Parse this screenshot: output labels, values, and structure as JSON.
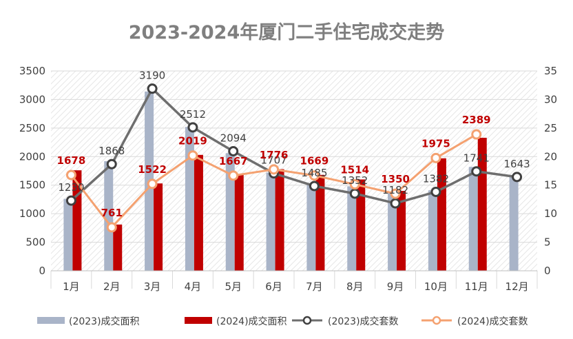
{
  "chart_data": {
    "type": "bar",
    "title": "2023-2024年厦门二手住宅成交走势",
    "categories": [
      "1月",
      "2月",
      "3月",
      "4月",
      "5月",
      "6月",
      "7月",
      "8月",
      "9月",
      "10月",
      "11月",
      "12月"
    ],
    "y_left": {
      "ylim": [
        0,
        3500
      ],
      "ticks": [
        "0",
        "500",
        "1000",
        "1500",
        "2000",
        "2500",
        "3000",
        "3500"
      ]
    },
    "y_right": {
      "ylim": [
        0,
        35
      ],
      "ticks": [
        "0",
        "5",
        "10",
        "15",
        "20",
        "25",
        "30",
        "35"
      ]
    },
    "grid": true,
    "legend_position": "bottom",
    "series": [
      {
        "name": "(2023)成交面积",
        "kind": "bar",
        "axis": "right",
        "values": [
          12.6,
          19.2,
          31.4,
          25.2,
          20.6,
          17.2,
          15.3,
          14.8,
          13.6,
          14.1,
          18.2,
          16.8
        ],
        "color": "#a9b4c8"
      },
      {
        "name": "(2024)成交面积",
        "kind": "bar",
        "axis": "right",
        "values": [
          17.6,
          8.1,
          15.3,
          20.3,
          16.9,
          17.8,
          16.8,
          16.0,
          14.0,
          19.7,
          23.3,
          null
        ],
        "color": "#c00000"
      },
      {
        "name": "(2023)成交套数",
        "kind": "line",
        "axis": "left",
        "values": [
          1230,
          1868,
          3190,
          2512,
          2094,
          1707,
          1485,
          1352,
          1182,
          1382,
          1741,
          1643
        ],
        "labels": [
          "1230",
          "1868",
          "3190",
          "2512",
          "2094",
          "1707",
          "1485",
          "1352",
          "1182",
          "1382",
          "1741",
          "1643"
        ],
        "color": "#6e6e6e"
      },
      {
        "name": "(2024)成交套数",
        "kind": "line",
        "axis": "left",
        "values": [
          1678,
          761,
          1522,
          2019,
          1667,
          1776,
          1669,
          1514,
          1350,
          1975,
          2389,
          null
        ],
        "labels": [
          "1678",
          "761",
          "1522",
          "2019",
          "1667",
          "1776",
          "1669",
          "1514",
          "1350",
          "1975",
          "2389",
          ""
        ],
        "color": "#f4a170"
      }
    ]
  }
}
